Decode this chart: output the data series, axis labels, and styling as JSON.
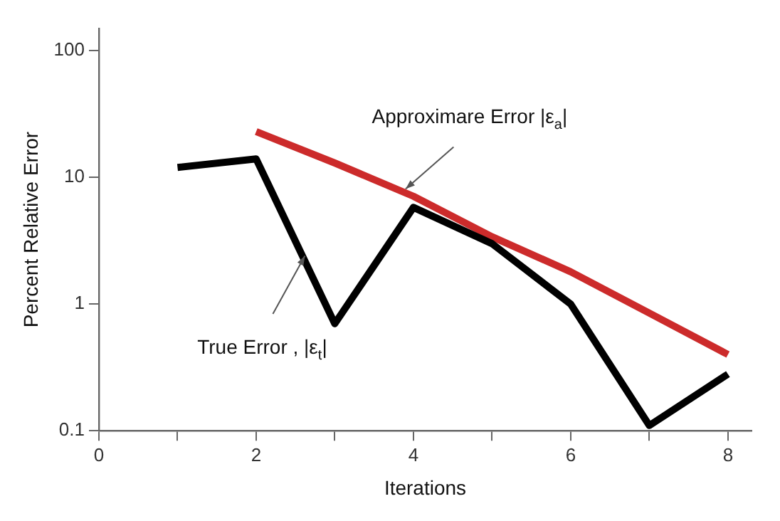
{
  "chart_data": {
    "type": "line",
    "xlabel": "Iterations",
    "ylabel": "Percent Relative Error",
    "log": "y",
    "grid": false,
    "legend": false,
    "marker": "none",
    "line_style": "solid",
    "xlim": [
      0,
      8.3
    ],
    "xticks": [
      0,
      {
        "value": 1,
        "label": null
      },
      2,
      {
        "value": 3,
        "label": null
      },
      4,
      {
        "value": 5,
        "label": null
      },
      6,
      {
        "value": 7,
        "label": null
      },
      8
    ],
    "ylim": [
      0.1,
      150
    ],
    "yticks": [
      0.1,
      1,
      10,
      100
    ],
    "series": [
      {
        "color": "#000000",
        "x": [
          1,
          2,
          3,
          4,
          5,
          6,
          7,
          8
        ],
        "values": [
          12,
          14,
          0.7,
          5.8,
          3,
          1,
          0.11,
          0.28
        ]
      },
      {
        "color": "#cc2b2b",
        "x": [
          2,
          3,
          4,
          5,
          6,
          7,
          8
        ],
        "values": [
          23,
          13,
          7.1,
          3.4,
          1.8,
          0.85,
          0.4
        ]
      }
    ],
    "annotations": [
      {
        "text": "Approximare Error |ε$_{a}$|",
        "x": 3.9,
        "y": 8.1
      },
      {
        "text": "True Error , |ε$_{t}$|",
        "x": 2.62,
        "y": 2.4
      }
    ]
  }
}
